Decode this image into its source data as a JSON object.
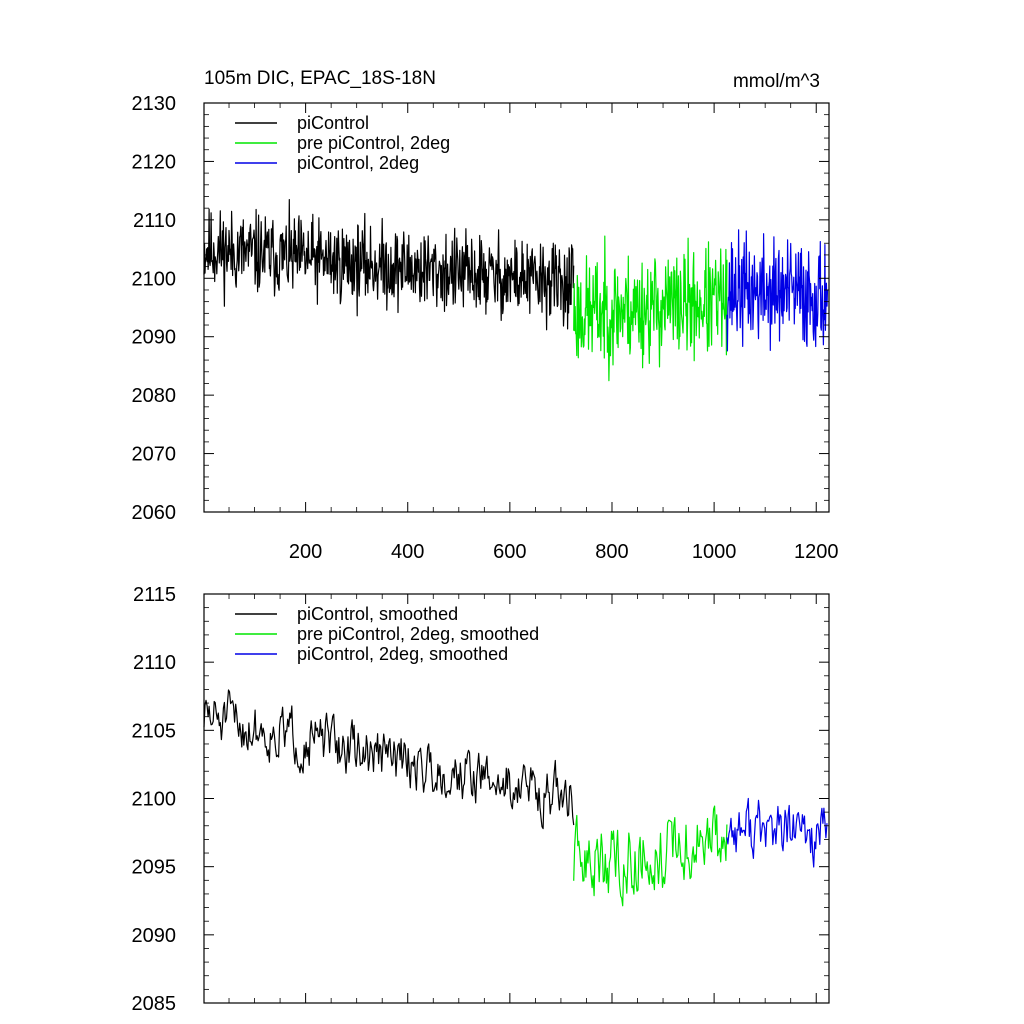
{
  "title": "105m DIC, EPAC_18S-18N",
  "units": "mmol/m^3",
  "colors": {
    "piControl": "#000000",
    "pre_piControl_2deg": "#00e600",
    "piControl_2deg": "#0000e6"
  },
  "chart_data": [
    {
      "type": "line",
      "title": "105m DIC, EPAC_18S-18N",
      "units_label": "mmol/m^3",
      "xlim": [
        1,
        1225
      ],
      "ylim": [
        2060,
        2130
      ],
      "xticks": [
        200,
        400,
        600,
        800,
        1000,
        1200
      ],
      "xtick_labels": [
        "200",
        "400",
        "600",
        "800",
        "1000",
        "1200"
      ],
      "yticks": [
        2060,
        2070,
        2080,
        2090,
        2100,
        2110,
        2120,
        2130
      ],
      "ytick_labels": [
        "2060",
        "2070",
        "2080",
        "2090",
        "2100",
        "2110",
        "2120",
        "2130"
      ],
      "grid": false,
      "legend_position": "top-left",
      "series": [
        {
          "name": "piControl",
          "color": "#000000",
          "x_start": 1,
          "x_end": 725,
          "mean_start": 2105,
          "mean_end": 2099,
          "amplitude": 6,
          "seed": 11
        },
        {
          "name": "pre piControl, 2deg",
          "color": "#00e600",
          "x_start": 725,
          "x_end": 1025,
          "mean_start": 2094,
          "mean_end": 2096,
          "amplitude": 8,
          "seed": 23
        },
        {
          "name": "piControl, 2deg",
          "color": "#0000e6",
          "x_start": 1025,
          "x_end": 1222,
          "mean_start": 2098,
          "mean_end": 2097,
          "amplitude": 8,
          "seed": 37
        }
      ]
    },
    {
      "type": "line",
      "title": "",
      "xlim": [
        1,
        1225
      ],
      "ylim": [
        2085,
        2115
      ],
      "xticks": [
        200,
        400,
        600,
        800,
        1000,
        1200
      ],
      "xtick_labels": [],
      "yticks": [
        2085,
        2090,
        2095,
        2100,
        2105,
        2110,
        2115
      ],
      "ytick_labels": [
        "2085",
        "2090",
        "2095",
        "2100",
        "2105",
        "2110",
        "2115"
      ],
      "grid": false,
      "legend_position": "top-left",
      "series": [
        {
          "name": "piControl, smoothed",
          "color": "#000000",
          "x_start": 1,
          "x_end": 725,
          "mean_start": 2106,
          "mean_end": 2100,
          "amplitude": 2.2,
          "seed": 51
        },
        {
          "name": "pre piControl, 2deg, smoothed",
          "color": "#00e600",
          "x_start": 725,
          "x_end": 1025,
          "mean_start": 2095,
          "mean_end": 2097,
          "amplitude": 3,
          "seed": 63
        },
        {
          "name": "piControl, 2deg, smoothed",
          "color": "#0000e6",
          "x_start": 1025,
          "x_end": 1222,
          "mean_start": 2098,
          "mean_end": 2097,
          "amplitude": 2.5,
          "seed": 77
        }
      ]
    }
  ]
}
